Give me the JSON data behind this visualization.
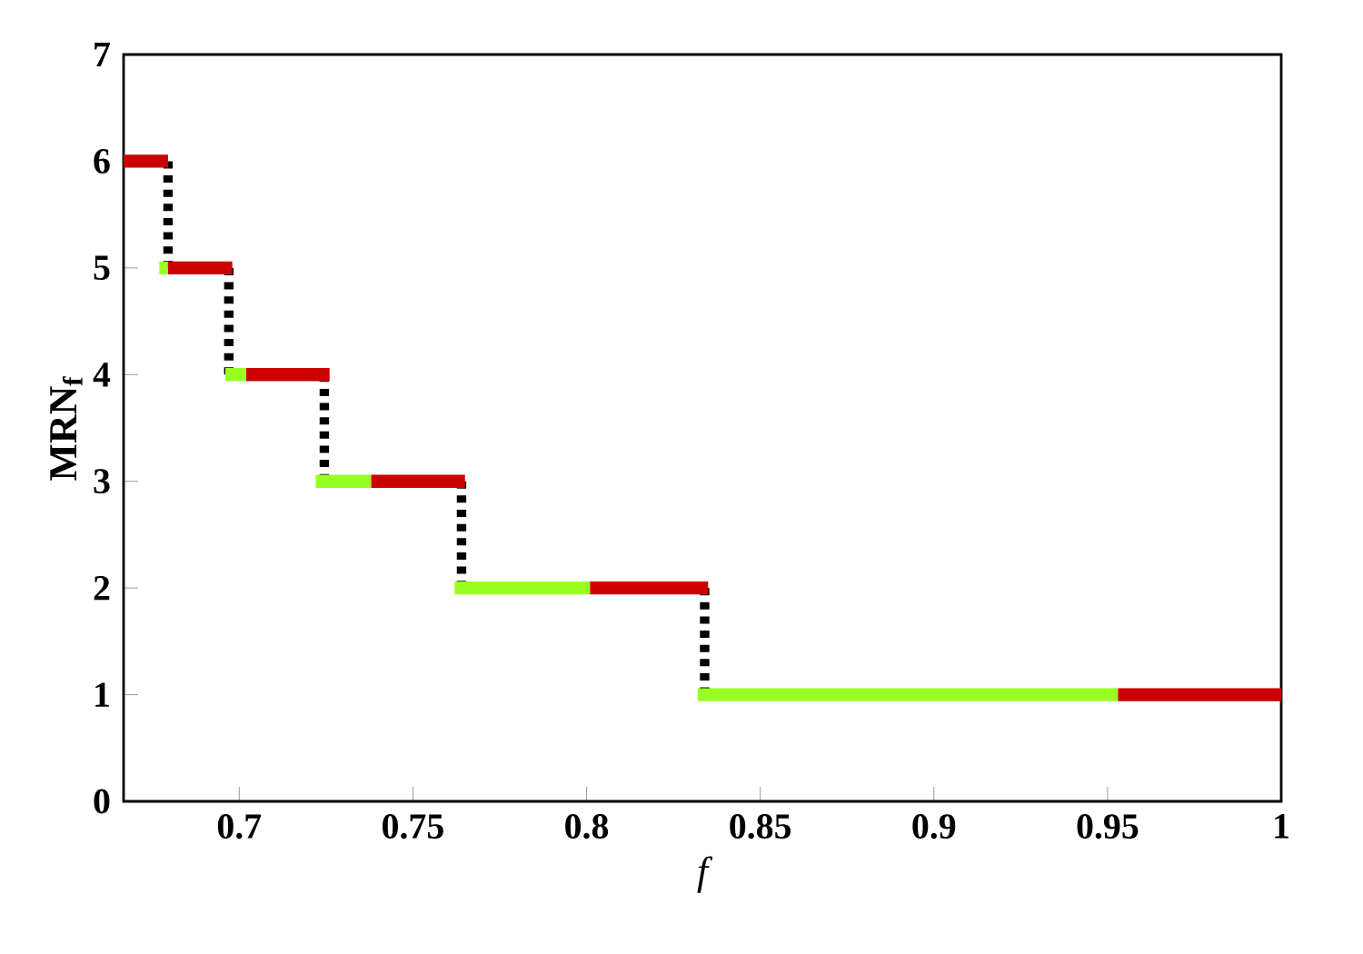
{
  "chart_data": {
    "type": "line",
    "xlabel": "f",
    "ylabel": "MRN$_{f}$",
    "xlim": [
      0.6667,
      1
    ],
    "ylim": [
      0,
      7
    ],
    "xticks": [
      0.7,
      0.75,
      0.8,
      0.85,
      0.9,
      0.95,
      1
    ],
    "yticks": [
      0,
      1,
      2,
      3,
      4,
      5,
      6,
      7
    ],
    "series": [
      {
        "color": "#000000",
        "line_style": "dotted",
        "x": [
          0.6795,
          0.6795,
          null,
          0.697,
          0.697,
          null,
          0.7245,
          0.7245,
          null,
          0.764,
          0.764,
          null,
          0.834,
          0.834
        ],
        "values": [
          6,
          5,
          null,
          5,
          4,
          null,
          4,
          3,
          null,
          3,
          2,
          null,
          2,
          1
        ]
      },
      {
        "color": "#99ff22",
        "line_style": "solid",
        "x": [
          0.677,
          0.6795,
          null,
          0.696,
          0.702,
          null,
          0.722,
          0.738,
          null,
          0.762,
          0.801,
          null,
          0.832,
          0.953
        ],
        "values": [
          5,
          5,
          null,
          4,
          4,
          null,
          3,
          3,
          null,
          2,
          2,
          null,
          1,
          1
        ]
      },
      {
        "color": "#cc0000",
        "line_style": "solid",
        "x": [
          0.6667,
          0.6795,
          null,
          0.6795,
          0.698,
          null,
          0.702,
          0.726,
          null,
          0.738,
          0.765,
          null,
          0.801,
          0.835,
          null,
          0.953,
          1
        ],
        "values": [
          6,
          6,
          null,
          5,
          5,
          null,
          4,
          4,
          null,
          3,
          3,
          null,
          2,
          2,
          null,
          1,
          1
        ]
      }
    ]
  }
}
